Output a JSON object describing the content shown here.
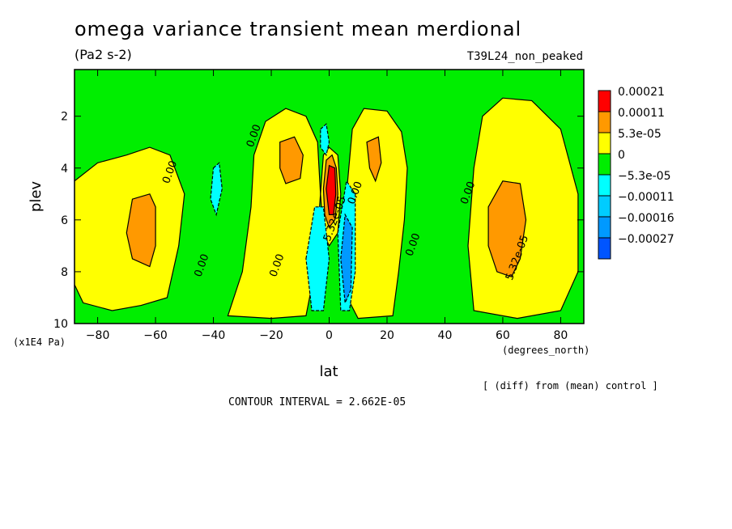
{
  "header": {
    "title": "omega variance transient mean merdional",
    "units": "(Pa2 s-2)",
    "run_id": "T39L24_non_peaked"
  },
  "footer": {
    "y_unit_note": "(x1E4 Pa)",
    "x_unit_note": "(degrees_north)",
    "diff_note": "[ (diff) from (mean) control ]",
    "contour_interval": "CONTOUR INTERVAL = 2.662E-05"
  },
  "chart_data": {
    "type": "heatmap",
    "title": "omega variance transient mean merdional",
    "xlabel": "lat",
    "ylabel": "plev",
    "xlim": [
      -88,
      88
    ],
    "ylim": [
      0.2,
      10
    ],
    "y_inverted": true,
    "x_ticks": [
      -80,
      -60,
      -40,
      -20,
      0,
      20,
      40,
      60,
      80
    ],
    "y_ticks": [
      2,
      4,
      6,
      8,
      10
    ],
    "legend": {
      "placement": "right",
      "labels": [
        "0.00021",
        "0.00011",
        "5.3e-05",
        "0",
        "-5.3e-05",
        "-0.00011",
        "-0.00016",
        "-0.00027"
      ],
      "colors": [
        "#ff0000",
        "#ff9900",
        "#ffff00",
        "#00ee00",
        "#00ffff",
        "#00ccff",
        "#0099ff",
        "#0055ff"
      ]
    },
    "colors": {
      "background": "#00ee00",
      "positive_1": "#ffff00",
      "positive_2": "#ff9900",
      "positive_3": "#ff0000",
      "negative_1": "#00ffff",
      "negative_2": "#0099ff"
    },
    "contour_labels": [
      "0.00",
      "0.00",
      "0.00",
      "0.00",
      "0.00",
      "0.00",
      "0.00",
      "5.32e-05",
      "5.32e-05"
    ],
    "regions": [
      {
        "level": "pos1",
        "pts": [
          [
            -88,
            4.5
          ],
          [
            -80,
            3.8
          ],
          [
            -70,
            3.5
          ],
          [
            -62,
            3.2
          ],
          [
            -55,
            3.5
          ],
          [
            -50,
            5
          ],
          [
            -52,
            7
          ],
          [
            -56,
            9
          ],
          [
            -65,
            9.3
          ],
          [
            -75,
            9.5
          ],
          [
            -85,
            9.2
          ],
          [
            -88,
            8.5
          ]
        ]
      },
      {
        "level": "pos2",
        "pts": [
          [
            -68,
            5.2
          ],
          [
            -62,
            5
          ],
          [
            -60,
            5.5
          ],
          [
            -60,
            7
          ],
          [
            -62,
            7.8
          ],
          [
            -68,
            7.5
          ],
          [
            -70,
            6.5
          ]
        ]
      },
      {
        "level": "pos1",
        "pts": [
          [
            -35,
            9.7
          ],
          [
            -30,
            8
          ],
          [
            -27,
            5.5
          ],
          [
            -26,
            3.5
          ],
          [
            -22,
            2.2
          ],
          [
            -15,
            1.7
          ],
          [
            -8,
            2
          ],
          [
            -4,
            3
          ],
          [
            -3,
            5
          ],
          [
            -5,
            8
          ],
          [
            -8,
            9.7
          ],
          [
            -20,
            9.8
          ]
        ]
      },
      {
        "level": "pos2",
        "pts": [
          [
            -17,
            3
          ],
          [
            -12,
            2.8
          ],
          [
            -9,
            3.5
          ],
          [
            -10,
            4.4
          ],
          [
            -15,
            4.6
          ],
          [
            -17,
            4
          ]
        ]
      },
      {
        "level": "pos1",
        "pts": [
          [
            4,
            8.5
          ],
          [
            6,
            5
          ],
          [
            8,
            2.5
          ],
          [
            12,
            1.7
          ],
          [
            20,
            1.8
          ],
          [
            25,
            2.6
          ],
          [
            27,
            4
          ],
          [
            26,
            6
          ],
          [
            24,
            8
          ],
          [
            22,
            9.7
          ],
          [
            10,
            9.8
          ]
        ]
      },
      {
        "level": "pos2",
        "pts": [
          [
            13,
            3
          ],
          [
            17,
            2.8
          ],
          [
            18,
            3.8
          ],
          [
            16,
            4.5
          ],
          [
            14,
            4
          ]
        ]
      },
      {
        "level": "pos1",
        "pts": [
          [
            50,
            9.5
          ],
          [
            48,
            7
          ],
          [
            50,
            4
          ],
          [
            53,
            2
          ],
          [
            60,
            1.3
          ],
          [
            70,
            1.4
          ],
          [
            80,
            2.5
          ],
          [
            86,
            5
          ],
          [
            86,
            8
          ],
          [
            80,
            9.5
          ],
          [
            65,
            9.8
          ]
        ]
      },
      {
        "level": "pos2",
        "pts": [
          [
            55,
            5.5
          ],
          [
            60,
            4.5
          ],
          [
            66,
            4.6
          ],
          [
            68,
            6
          ],
          [
            66,
            7.5
          ],
          [
            63,
            8.2
          ],
          [
            58,
            8
          ],
          [
            55,
            7
          ]
        ]
      },
      {
        "level": "pos1",
        "pts": [
          [
            -3,
            5
          ],
          [
            -2,
            3.5
          ],
          [
            0,
            3.2
          ],
          [
            3,
            3.5
          ],
          [
            4,
            5
          ],
          [
            3,
            6.5
          ],
          [
            0,
            7
          ],
          [
            -2,
            6.5
          ]
        ]
      },
      {
        "level": "pos2",
        "pts": [
          [
            -2,
            4.8
          ],
          [
            -1,
            3.7
          ],
          [
            1,
            3.5
          ],
          [
            2.5,
            4
          ],
          [
            3,
            5
          ],
          [
            2,
            6
          ],
          [
            0,
            6.3
          ],
          [
            -1.5,
            5.8
          ]
        ]
      },
      {
        "level": "pos3",
        "pts": [
          [
            -1,
            4.8
          ],
          [
            0,
            3.9
          ],
          [
            2,
            4
          ],
          [
            2.3,
            5
          ],
          [
            1.5,
            5.8
          ],
          [
            0,
            5.8
          ]
        ]
      },
      {
        "level": "neg1",
        "pts": [
          [
            -8,
            7.5
          ],
          [
            -5,
            5.5
          ],
          [
            -2,
            5.5
          ],
          [
            0,
            7.5
          ],
          [
            -2,
            9.5
          ],
          [
            -6,
            9.5
          ]
        ]
      },
      {
        "level": "neg1",
        "pts": [
          [
            3,
            6.5
          ],
          [
            6,
            4.5
          ],
          [
            9,
            5
          ],
          [
            9,
            8
          ],
          [
            7,
            9.5
          ],
          [
            4,
            9.5
          ]
        ]
      },
      {
        "level": "neg2",
        "pts": [
          [
            4,
            7.5
          ],
          [
            5.5,
            5.8
          ],
          [
            8,
            6.3
          ],
          [
            7.5,
            8.7
          ],
          [
            5.5,
            9.2
          ]
        ]
      },
      {
        "level": "neg1",
        "pts": [
          [
            -40,
            4
          ],
          [
            -38,
            3.8
          ],
          [
            -37,
            4.8
          ],
          [
            -39,
            5.8
          ],
          [
            -41,
            5.2
          ]
        ]
      },
      {
        "level": "neg1",
        "pts": [
          [
            -3,
            2.5
          ],
          [
            -1,
            2.3
          ],
          [
            0,
            3
          ],
          [
            -1,
            3.5
          ],
          [
            -3,
            3.2
          ]
        ]
      }
    ]
  }
}
